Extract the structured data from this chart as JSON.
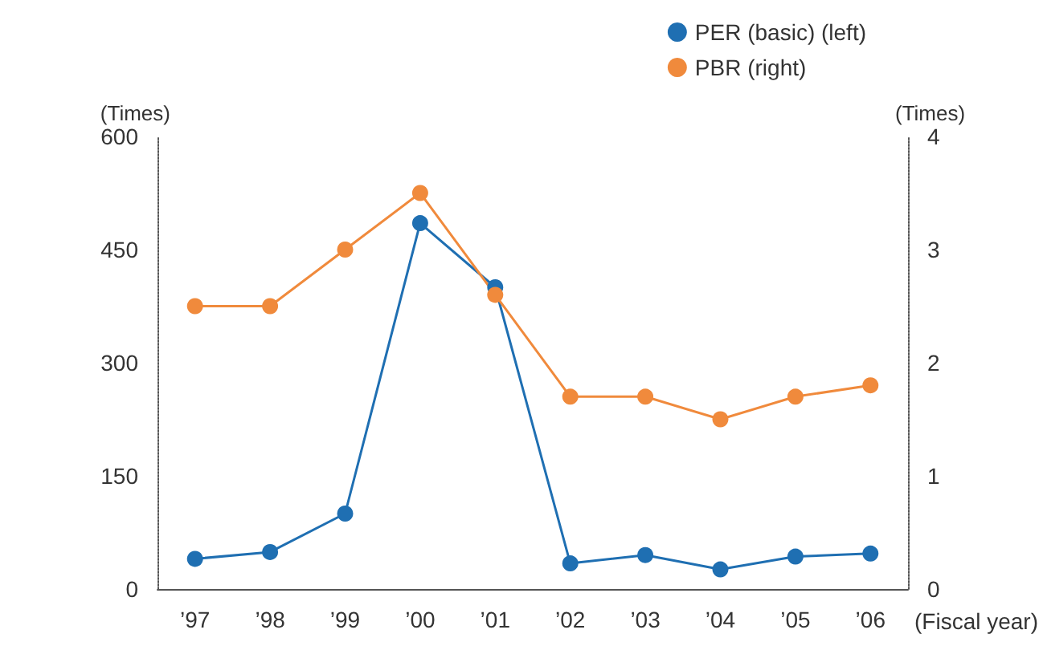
{
  "chart_data": {
    "type": "line",
    "categories": [
      "’97",
      "’98",
      "’99",
      "’00",
      "’01",
      "’02",
      "’03",
      "’04",
      "’05",
      "’06"
    ],
    "series": [
      {
        "name": "PER (basic) (left)",
        "color": "#1f6fb2",
        "values": [
          40,
          49,
          100,
          485,
          400,
          34,
          45,
          26,
          43,
          47
        ]
      },
      {
        "name": "PBR (right)",
        "color": "#f08a3c",
        "axis": "y2",
        "values": [
          2.5,
          2.5,
          3.0,
          3.5,
          2.6,
          1.7,
          1.7,
          1.5,
          1.7,
          1.8
        ]
      }
    ],
    "ylabel": "(Times)",
    "y2label": "(Times)",
    "xlabel": "(Fiscal year)",
    "ylim": [
      0,
      600
    ],
    "yticks": [
      0,
      150,
      300,
      450,
      600
    ],
    "y2lim": [
      0,
      4
    ],
    "y2ticks": [
      0,
      1,
      2,
      3,
      4
    ],
    "grid": false,
    "legend": "top right",
    "marker": "circle",
    "line_style": "solid"
  }
}
